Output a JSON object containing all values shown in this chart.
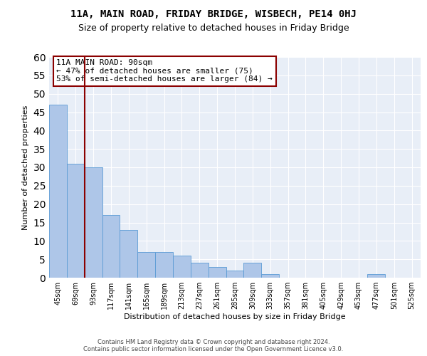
{
  "title1": "11A, MAIN ROAD, FRIDAY BRIDGE, WISBECH, PE14 0HJ",
  "title2": "Size of property relative to detached houses in Friday Bridge",
  "xlabel": "Distribution of detached houses by size in Friday Bridge",
  "ylabel": "Number of detached properties",
  "categories": [
    "45sqm",
    "69sqm",
    "93sqm",
    "117sqm",
    "141sqm",
    "165sqm",
    "189sqm",
    "213sqm",
    "237sqm",
    "261sqm",
    "285sqm",
    "309sqm",
    "333sqm",
    "357sqm",
    "381sqm",
    "405sqm",
    "429sqm",
    "453sqm",
    "477sqm",
    "501sqm",
    "525sqm"
  ],
  "values": [
    47,
    31,
    30,
    17,
    13,
    7,
    7,
    6,
    4,
    3,
    2,
    4,
    1,
    0,
    0,
    0,
    0,
    0,
    1,
    0,
    0
  ],
  "bar_color": "#aec6e8",
  "bar_edge_color": "#5b9bd5",
  "vline_color": "#8B0000",
  "annotation_text": "11A MAIN ROAD: 90sqm\n← 47% of detached houses are smaller (75)\n53% of semi-detached houses are larger (84) →",
  "annotation_box_color": "white",
  "annotation_box_edge_color": "#8B0000",
  "ylim": [
    0,
    60
  ],
  "yticks": [
    0,
    5,
    10,
    15,
    20,
    25,
    30,
    35,
    40,
    45,
    50,
    55,
    60
  ],
  "background_color": "#e8eef7",
  "footer_text": "Contains HM Land Registry data © Crown copyright and database right 2024.\nContains public sector information licensed under the Open Government Licence v3.0.",
  "title1_fontsize": 10,
  "title2_fontsize": 9,
  "annotation_fontsize": 8,
  "xlabel_fontsize": 8,
  "ylabel_fontsize": 8,
  "tick_fontsize": 7
}
